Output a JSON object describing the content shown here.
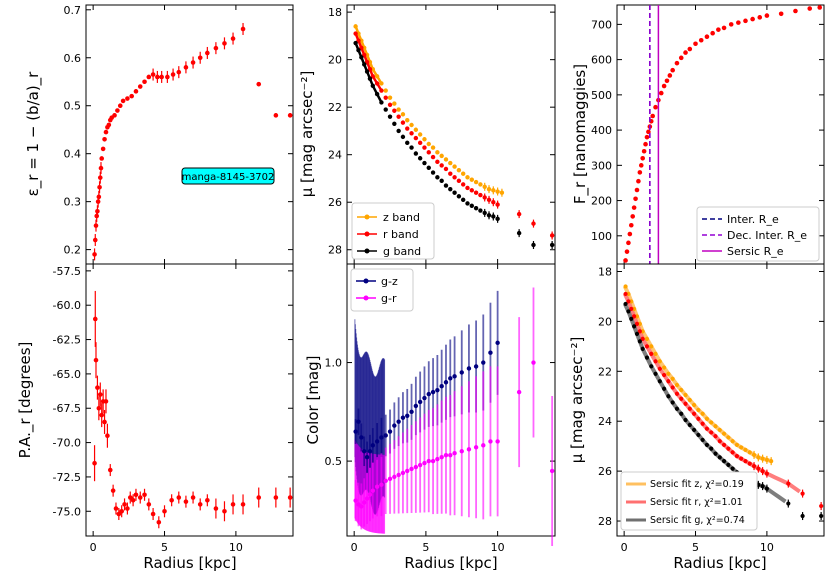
{
  "colors": {
    "z": "#ffa500",
    "r": "#ff0000",
    "g": "#000000",
    "gz": "#000080",
    "gr": "#ff00ff",
    "inter": "#000080",
    "dec": "#9400d3",
    "sersic": "#c000c0",
    "tag": "#00ffff"
  },
  "shared_xlabel": "Radius [kpc]",
  "chart_data": [
    {
      "type": "scatter",
      "id": "ellip",
      "ylabel": "ε_r = 1 − (b/a)_r",
      "ylim": [
        0.17,
        0.71
      ],
      "xlim": [
        -0.5,
        14
      ],
      "yticks": [
        "0.2",
        "0.3",
        "0.4",
        "0.5",
        "0.6",
        "0.7"
      ],
      "annotation": "manga-8145-3702",
      "series": [
        {
          "name": "epsilon",
          "color": "#ff0000",
          "x": [
            0.1,
            0.15,
            0.2,
            0.25,
            0.3,
            0.35,
            0.4,
            0.45,
            0.5,
            0.55,
            0.6,
            0.7,
            0.8,
            0.9,
            1.0,
            1.1,
            1.2,
            1.3,
            1.5,
            1.7,
            1.9,
            2.1,
            2.4,
            2.7,
            3.0,
            3.3,
            3.6,
            3.9,
            4.2,
            4.5,
            4.8,
            5.2,
            5.6,
            6.0,
            6.5,
            7.0,
            7.5,
            8.0,
            8.6,
            9.2,
            9.8,
            10.5,
            11.6,
            12.8,
            13.8
          ],
          "y": [
            0.19,
            0.22,
            0.25,
            0.27,
            0.28,
            0.3,
            0.31,
            0.33,
            0.35,
            0.37,
            0.39,
            0.41,
            0.43,
            0.445,
            0.455,
            0.46,
            0.47,
            0.475,
            0.48,
            0.49,
            0.5,
            0.51,
            0.515,
            0.52,
            0.53,
            0.54,
            0.55,
            0.56,
            0.565,
            0.56,
            0.56,
            0.56,
            0.565,
            0.57,
            0.58,
            0.59,
            0.6,
            0.61,
            0.62,
            0.63,
            0.64,
            0.66,
            0.545,
            0.48,
            0.48
          ]
        }
      ]
    },
    {
      "type": "scatter",
      "id": "pa",
      "ylabel": "P.A._r [degrees]",
      "ylim": [
        -76.8,
        -57
      ],
      "xlim": [
        -0.5,
        14
      ],
      "yticks": [
        "-57.5",
        "-60.0",
        "-62.5",
        "-65.0",
        "-67.5",
        "-70.0",
        "-72.5",
        "-75.0"
      ],
      "series": [
        {
          "name": "PA",
          "color": "#ff0000",
          "x": [
            0.1,
            0.15,
            0.2,
            0.3,
            0.4,
            0.5,
            0.6,
            0.7,
            0.8,
            0.9,
            1.0,
            1.2,
            1.4,
            1.6,
            1.8,
            2.0,
            2.2,
            2.4,
            2.6,
            2.8,
            3.0,
            3.3,
            3.6,
            3.9,
            4.2,
            4.6,
            5.0,
            5.5,
            6.0,
            6.5,
            7.0,
            7.5,
            8.0,
            8.6,
            9.2,
            9.8,
            10.5,
            11.6,
            12.8,
            13.8
          ],
          "y": [
            -71.5,
            -61.0,
            -64.0,
            -66.0,
            -67.5,
            -66.5,
            -68.0,
            -67.0,
            -68.5,
            -67.0,
            -69.5,
            -72.0,
            -73.5,
            -74.8,
            -75.2,
            -75.0,
            -74.5,
            -74.8,
            -74.0,
            -74.2,
            -73.8,
            -74.0,
            -73.8,
            -74.5,
            -75.2,
            -75.8,
            -75.0,
            -74.2,
            -74.0,
            -74.3,
            -74.0,
            -74.5,
            -74.2,
            -74.8,
            -75.0,
            -74.5,
            -74.5,
            -74.0,
            -74.0,
            -74.0
          ]
        }
      ]
    },
    {
      "type": "scatter",
      "id": "sb",
      "ylabel": "μ [mag arcsec⁻²]",
      "ylim": [
        28.6,
        17.7
      ],
      "xlim": [
        -0.5,
        14
      ],
      "yticks": [
        "18",
        "20",
        "22",
        "24",
        "26",
        "28"
      ],
      "legend": [
        "z band",
        "r band",
        "g band"
      ],
      "series": [
        {
          "name": "z band",
          "color": "#ffa500",
          "x": [
            0.1,
            0.3,
            0.5,
            0.7,
            0.9,
            1.1,
            1.3,
            1.6,
            1.9,
            2.2,
            2.5,
            2.8,
            3.1,
            3.4,
            3.7,
            4.0,
            4.3,
            4.6,
            4.9,
            5.2,
            5.5,
            5.8,
            6.1,
            6.4,
            6.7,
            7.0,
            7.3,
            7.6,
            7.9,
            8.2,
            8.5,
            8.8,
            9.1,
            9.4,
            9.7,
            10.0,
            10.3
          ],
          "y": [
            18.6,
            18.9,
            19.2,
            19.5,
            19.8,
            20.1,
            20.4,
            20.7,
            21.0,
            21.3,
            21.6,
            21.85,
            22.1,
            22.3,
            22.55,
            22.75,
            22.95,
            23.15,
            23.35,
            23.55,
            23.7,
            23.9,
            24.05,
            24.2,
            24.35,
            24.5,
            24.65,
            24.8,
            24.95,
            25.05,
            25.15,
            25.25,
            25.35,
            25.45,
            25.5,
            25.55,
            25.6
          ]
        },
        {
          "name": "r band",
          "color": "#ff0000",
          "x": [
            0.1,
            0.3,
            0.5,
            0.7,
            0.9,
            1.1,
            1.3,
            1.6,
            1.9,
            2.2,
            2.5,
            2.8,
            3.1,
            3.4,
            3.7,
            4.0,
            4.3,
            4.6,
            4.9,
            5.2,
            5.5,
            5.8,
            6.1,
            6.4,
            6.7,
            7.0,
            7.3,
            7.6,
            7.9,
            8.2,
            8.5,
            8.8,
            9.1,
            9.4,
            9.7,
            10.0,
            11.5,
            12.5,
            13.8
          ],
          "y": [
            18.9,
            19.2,
            19.5,
            19.8,
            20.1,
            20.4,
            20.7,
            21.0,
            21.3,
            21.6,
            21.9,
            22.15,
            22.4,
            22.65,
            22.9,
            23.1,
            23.3,
            23.5,
            23.7,
            23.9,
            24.1,
            24.3,
            24.45,
            24.6,
            24.8,
            24.95,
            25.1,
            25.25,
            25.4,
            25.5,
            25.6,
            25.7,
            25.8,
            25.9,
            26.0,
            26.1,
            26.5,
            26.9,
            27.4
          ]
        },
        {
          "name": "g band",
          "color": "#000000",
          "x": [
            0.1,
            0.3,
            0.5,
            0.7,
            0.9,
            1.1,
            1.3,
            1.6,
            1.9,
            2.2,
            2.5,
            2.8,
            3.1,
            3.4,
            3.7,
            4.0,
            4.3,
            4.6,
            4.9,
            5.2,
            5.5,
            5.8,
            6.1,
            6.4,
            6.7,
            7.0,
            7.3,
            7.6,
            7.9,
            8.2,
            8.5,
            8.8,
            9.1,
            9.4,
            9.7,
            10.0,
            11.5,
            12.5,
            13.8
          ],
          "y": [
            19.3,
            19.6,
            19.9,
            20.2,
            20.5,
            20.8,
            21.1,
            21.45,
            21.8,
            22.1,
            22.4,
            22.7,
            23.0,
            23.25,
            23.5,
            23.7,
            23.95,
            24.15,
            24.35,
            24.55,
            24.75,
            24.95,
            25.1,
            25.3,
            25.45,
            25.6,
            25.75,
            25.9,
            26.05,
            26.15,
            26.25,
            26.35,
            26.45,
            26.55,
            26.6,
            26.7,
            27.3,
            27.8,
            27.8
          ]
        }
      ]
    },
    {
      "type": "scatter",
      "id": "color",
      "ylabel": "Color [mag]",
      "ylim": [
        0.12,
        1.5
      ],
      "xlim": [
        -0.5,
        14
      ],
      "yticks": [
        "0.5",
        "1.0"
      ],
      "legend": [
        "g-z",
        "g-r"
      ],
      "series": [
        {
          "name": "g-z",
          "color": "#000080",
          "x": [
            0.1,
            0.3,
            0.5,
            0.7,
            0.9,
            1.1,
            1.3,
            1.6,
            1.9,
            2.2,
            2.5,
            2.8,
            3.1,
            3.4,
            3.7,
            4.0,
            4.3,
            4.6,
            4.9,
            5.2,
            5.5,
            5.8,
            6.1,
            6.4,
            6.7,
            7.0,
            7.5,
            8.0,
            8.5,
            9.0,
            9.5,
            10.0
          ],
          "y": [
            0.65,
            0.7,
            0.62,
            0.55,
            0.52,
            0.55,
            0.58,
            0.6,
            0.62,
            0.63,
            0.65,
            0.68,
            0.7,
            0.72,
            0.73,
            0.75,
            0.78,
            0.8,
            0.82,
            0.84,
            0.85,
            0.86,
            0.88,
            0.9,
            0.92,
            0.93,
            0.95,
            0.97,
            0.98,
            1.0,
            1.05,
            1.1
          ]
        },
        {
          "name": "g-r",
          "color": "#ff00ff",
          "x": [
            0.1,
            0.3,
            0.5,
            0.7,
            0.9,
            1.1,
            1.3,
            1.6,
            1.9,
            2.2,
            2.5,
            2.8,
            3.1,
            3.4,
            3.7,
            4.0,
            4.3,
            4.6,
            4.9,
            5.2,
            5.5,
            5.8,
            6.1,
            6.4,
            6.7,
            7.0,
            7.5,
            8.0,
            8.5,
            9.0,
            9.5,
            10.0,
            11.5,
            12.5,
            13.8
          ],
          "y": [
            0.3,
            0.28,
            0.27,
            0.29,
            0.31,
            0.33,
            0.35,
            0.37,
            0.38,
            0.4,
            0.41,
            0.42,
            0.43,
            0.44,
            0.45,
            0.46,
            0.47,
            0.48,
            0.49,
            0.5,
            0.5,
            0.51,
            0.52,
            0.53,
            0.53,
            0.54,
            0.55,
            0.56,
            0.57,
            0.58,
            0.6,
            0.6,
            0.85,
            1.0,
            0.45
          ]
        }
      ]
    },
    {
      "type": "line",
      "id": "flux",
      "ylabel": "F_r [nanomaggies]",
      "ylim": [
        20,
        755
      ],
      "xlim": [
        -0.5,
        14
      ],
      "yticks": [
        "100",
        "200",
        "300",
        "400",
        "500",
        "600",
        "700"
      ],
      "legend": [
        "Inter. R_e",
        "Dec. Inter. R_e",
        "Sersic R_e"
      ],
      "vlines": {
        "inter": 1.8,
        "dec": 1.8,
        "sersic": 2.4
      },
      "series": [
        {
          "name": "flux",
          "color": "#ff0000",
          "x": [
            0.1,
            0.2,
            0.3,
            0.4,
            0.5,
            0.6,
            0.7,
            0.8,
            0.9,
            1.0,
            1.1,
            1.2,
            1.3,
            1.4,
            1.5,
            1.6,
            1.7,
            1.8,
            1.9,
            2.0,
            2.2,
            2.4,
            2.6,
            2.8,
            3.0,
            3.2,
            3.4,
            3.7,
            4.0,
            4.3,
            4.6,
            5.0,
            5.4,
            5.8,
            6.2,
            6.6,
            7.0,
            7.5,
            8.0,
            8.5,
            9.0,
            9.5,
            10.0,
            11.0,
            12.0,
            13.0,
            13.7
          ],
          "y": [
            30,
            55,
            80,
            105,
            130,
            155,
            180,
            205,
            230,
            255,
            280,
            300,
            320,
            340,
            360,
            380,
            395,
            410,
            425,
            440,
            465,
            485,
            505,
            525,
            540,
            555,
            570,
            590,
            605,
            620,
            630,
            645,
            655,
            665,
            675,
            685,
            690,
            700,
            705,
            710,
            715,
            720,
            725,
            730,
            738,
            745,
            748
          ]
        }
      ]
    },
    {
      "type": "scatter",
      "id": "sersic",
      "ylabel": "μ [mag arcsec⁻²]",
      "ylim": [
        28.6,
        17.7
      ],
      "xlim": [
        -0.5,
        14
      ],
      "yticks": [
        "18",
        "20",
        "22",
        "24",
        "26",
        "28"
      ],
      "legend": [
        "Sersic fit z, χ²=0.19",
        "Sersic fit r, χ²=1.01",
        "Sersic fit g, χ²=0.74"
      ],
      "fit_end": {
        "z": 10.5,
        "r": 12.5,
        "g": 11.5
      }
    }
  ]
}
